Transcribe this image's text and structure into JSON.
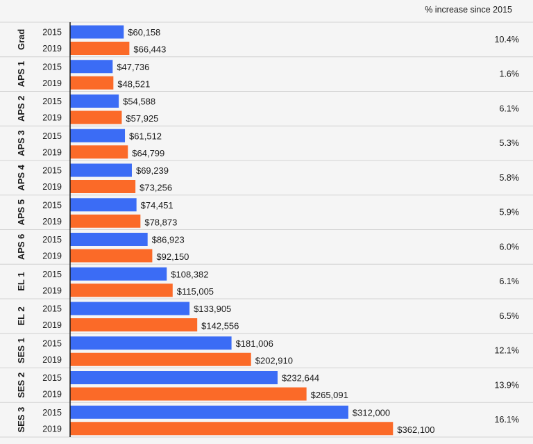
{
  "chart_data": {
    "type": "bar",
    "orientation": "horizontal",
    "header": "% increase since 2015",
    "series": [
      {
        "name": "2015",
        "color": "#3b6cf5"
      },
      {
        "name": "2019",
        "color": "#fb6a28"
      }
    ],
    "categories": [
      {
        "label": "Grad",
        "v2015": 60158,
        "v2019": 66443,
        "l2015": "$60,158",
        "l2019": "$66,443",
        "pct": "10.4%"
      },
      {
        "label": "APS 1",
        "v2015": 47736,
        "v2019": 48521,
        "l2015": "$47,736",
        "l2019": "$48,521",
        "pct": "1.6%"
      },
      {
        "label": "APS 2",
        "v2015": 54588,
        "v2019": 57925,
        "l2015": "$54,588",
        "l2019": "$57,925",
        "pct": "6.1%"
      },
      {
        "label": "APS 3",
        "v2015": 61512,
        "v2019": 64799,
        "l2015": "$61,512",
        "l2019": "$64,799",
        "pct": "5.3%"
      },
      {
        "label": "APS 4",
        "v2015": 69239,
        "v2019": 73256,
        "l2015": "$69,239",
        "l2019": "$73,256",
        "pct": "5.8%"
      },
      {
        "label": "APS 5",
        "v2015": 74451,
        "v2019": 78873,
        "l2015": "$74,451",
        "l2019": "$78,873",
        "pct": "5.9%"
      },
      {
        "label": "APS 6",
        "v2015": 86923,
        "v2019": 92150,
        "l2015": "$86,923",
        "l2019": "$92,150",
        "pct": "6.0%"
      },
      {
        "label": "EL 1",
        "v2015": 108382,
        "v2019": 115005,
        "l2015": "$108,382",
        "l2019": "$115,005",
        "pct": "6.1%"
      },
      {
        "label": "EL 2",
        "v2015": 133905,
        "v2019": 142556,
        "l2015": "$133,905",
        "l2019": "$142,556",
        "pct": "6.5%"
      },
      {
        "label": "SES 1",
        "v2015": 181006,
        "v2019": 202910,
        "l2015": "$181,006",
        "l2019": "$202,910",
        "pct": "12.1%"
      },
      {
        "label": "SES 2",
        "v2015": 232644,
        "v2019": 265091,
        "l2015": "$232,644",
        "l2019": "$265,091",
        "pct": "13.9%"
      },
      {
        "label": "SES 3",
        "v2015": 312000,
        "v2019": 362100,
        "l2015": "$312,000",
        "l2019": "$362,100",
        "pct": "16.1%"
      }
    ],
    "grid": false,
    "legend": "none"
  }
}
